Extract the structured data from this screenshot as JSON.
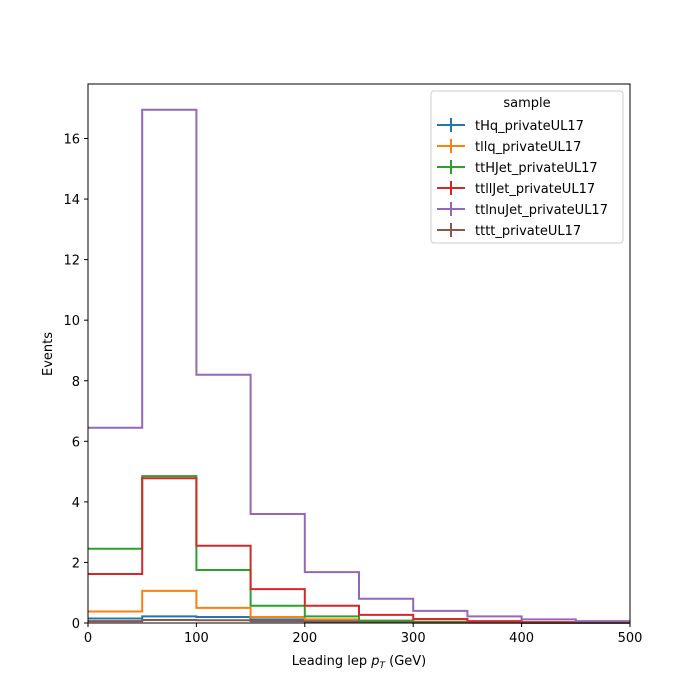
{
  "chart_data": {
    "type": "line",
    "step": "histogram",
    "xlabel_main": "Leading lep ",
    "xlabel_p": "p",
    "xlabel_sub": "T",
    "xlabel_unit": " (GeV)",
    "ylabel": "Events",
    "xlim": [
      0,
      500
    ],
    "ylim": [
      0,
      17.8
    ],
    "xticks": [
      0,
      100,
      200,
      300,
      400,
      500
    ],
    "yticks": [
      0,
      2,
      4,
      6,
      8,
      10,
      12,
      14,
      16
    ],
    "bin_edges": [
      0,
      50,
      100,
      150,
      200,
      250,
      300,
      350,
      400,
      450,
      500
    ],
    "legend_title": "sample",
    "legend_position": "top-right",
    "series": [
      {
        "name": "tHq_privateUL17",
        "color": "#1f77b4",
        "values": [
          0.15,
          0.22,
          0.2,
          0.12,
          0.08,
          0.04,
          0.03,
          0.02,
          0.01,
          0.01
        ]
      },
      {
        "name": "tllq_privateUL17",
        "color": "#ff7f0e",
        "values": [
          0.38,
          1.06,
          0.5,
          0.2,
          0.12,
          0.06,
          0.04,
          0.02,
          0.01,
          0.01
        ]
      },
      {
        "name": "ttHJet_privateUL17",
        "color": "#2ca02c",
        "values": [
          2.45,
          4.85,
          1.75,
          0.57,
          0.22,
          0.08,
          0.04,
          0.02,
          0.01,
          0.01
        ]
      },
      {
        "name": "ttllJet_privateUL17",
        "color": "#d62728",
        "values": [
          1.62,
          4.78,
          2.55,
          1.12,
          0.57,
          0.27,
          0.13,
          0.06,
          0.03,
          0.02
        ]
      },
      {
        "name": "ttlnuJet_privateUL17",
        "color": "#9467bd",
        "values": [
          6.45,
          16.95,
          8.2,
          3.6,
          1.68,
          0.8,
          0.4,
          0.22,
          0.12,
          0.06
        ]
      },
      {
        "name": "tttt_privateUL17",
        "color": "#8c564b",
        "values": [
          0.06,
          0.1,
          0.09,
          0.06,
          0.03,
          0.02,
          0.01,
          0.01,
          0.005,
          0.005
        ]
      }
    ]
  }
}
